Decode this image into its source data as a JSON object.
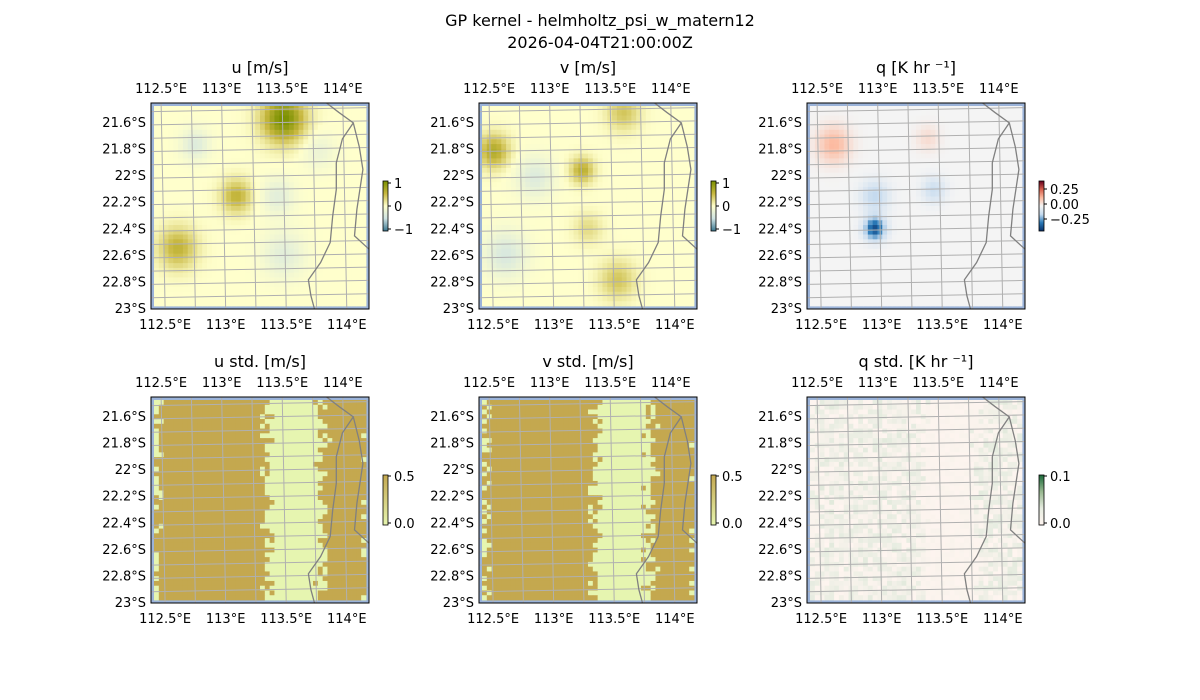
{
  "figure": {
    "title_line1": "GP kernel - helmholtz_psi_w_matern12",
    "title_line2": "2026-04-04T21:00:00Z"
  },
  "chart_data": [
    {
      "type": "heatmap",
      "id": "u",
      "title": "u [m/s]",
      "x_ticks": [
        "112.5°E",
        "113°E",
        "113.5°E",
        "114°E"
      ],
      "y_ticks": [
        "21.6°S",
        "21.8°S",
        "22°S",
        "22.2°S",
        "22.4°S",
        "22.6°S",
        "22.8°S",
        "23°S"
      ],
      "xlim": [
        112.4,
        114.2
      ],
      "ylim": [
        -23.0,
        -21.45
      ],
      "colorbar": {
        "ticks": [
          "1",
          "0",
          "−1"
        ],
        "range": [
          -1,
          1
        ]
      },
      "colormap": [
        "#3a7790",
        "#cfe3e3",
        "#ffffcc",
        "#c8b840",
        "#7a9000"
      ],
      "blobs": [
        {
          "lon": 113.5,
          "lat": -21.55,
          "value": 1.0,
          "radius": 0.18
        },
        {
          "lon": 113.1,
          "lat": -22.15,
          "value": 0.55,
          "radius": 0.13
        },
        {
          "lon": 112.6,
          "lat": -22.55,
          "value": 0.55,
          "radius": 0.16
        },
        {
          "lon": 112.75,
          "lat": -21.75,
          "value": -0.35,
          "radius": 0.12
        },
        {
          "lon": 113.45,
          "lat": -22.15,
          "value": -0.3,
          "radius": 0.14
        },
        {
          "lon": 113.5,
          "lat": -22.6,
          "value": -0.3,
          "radius": 0.18
        },
        {
          "lon": 113.8,
          "lat": -21.8,
          "value": -0.2,
          "radius": 0.14
        }
      ]
    },
    {
      "type": "heatmap",
      "id": "v",
      "title": "v [m/s]",
      "x_ticks": [
        "112.5°E",
        "113°E",
        "113.5°E",
        "114°E"
      ],
      "y_ticks": [
        "21.6°S",
        "21.8°S",
        "22°S",
        "22.2°S",
        "22.4°S",
        "22.6°S",
        "22.8°S",
        "23°S"
      ],
      "xlim": [
        112.4,
        114.2
      ],
      "ylim": [
        -23.0,
        -21.45
      ],
      "colorbar": {
        "ticks": [
          "1",
          "0",
          "−1"
        ],
        "range": [
          -1,
          1
        ]
      },
      "colormap": [
        "#3a7790",
        "#cfe3e3",
        "#ffffcc",
        "#c8b840",
        "#7a9000"
      ],
      "blobs": [
        {
          "lon": 112.5,
          "lat": -21.8,
          "value": 0.65,
          "radius": 0.13
        },
        {
          "lon": 113.25,
          "lat": -21.95,
          "value": 0.6,
          "radius": 0.1
        },
        {
          "lon": 113.6,
          "lat": -21.5,
          "value": 0.4,
          "radius": 0.14
        },
        {
          "lon": 113.55,
          "lat": -22.8,
          "value": 0.4,
          "radius": 0.15
        },
        {
          "lon": 112.85,
          "lat": -22.0,
          "value": -0.35,
          "radius": 0.16
        },
        {
          "lon": 112.6,
          "lat": -22.6,
          "value": -0.4,
          "radius": 0.18
        },
        {
          "lon": 113.3,
          "lat": -22.4,
          "value": 0.25,
          "radius": 0.12
        }
      ]
    },
    {
      "type": "heatmap",
      "id": "q",
      "title": "q [K hr ⁻¹]",
      "x_ticks": [
        "112.5°E",
        "113°E",
        "113.5°E",
        "114°E"
      ],
      "y_ticks": [
        "21.6°S",
        "21.8°S",
        "22°S",
        "22.2°S",
        "22.4°S",
        "22.6°S",
        "22.8°S",
        "23°S"
      ],
      "xlim": [
        112.4,
        114.2
      ],
      "ylim": [
        -23.0,
        -21.45
      ],
      "colorbar": {
        "ticks": [
          "0.25",
          "0.00",
          "−0.25"
        ],
        "range": [
          -0.35,
          0.35
        ]
      },
      "colormap": [
        "#08306b",
        "#2a7ab8",
        "#c6dbef",
        "#f4f4f4",
        "#fcbba1",
        "#d6604d",
        "#67001f"
      ],
      "blobs": [
        {
          "lon": 112.95,
          "lat": -22.4,
          "value": -0.3,
          "radius": 0.09
        },
        {
          "lon": 112.95,
          "lat": -22.15,
          "value": -0.12,
          "radius": 0.12
        },
        {
          "lon": 113.45,
          "lat": -22.1,
          "value": -0.1,
          "radius": 0.1
        },
        {
          "lon": 112.6,
          "lat": -21.75,
          "value": 0.12,
          "radius": 0.14
        },
        {
          "lon": 113.4,
          "lat": -21.7,
          "value": 0.05,
          "radius": 0.1
        }
      ]
    },
    {
      "type": "heatmap",
      "id": "u_std",
      "title": "u std. [m/s]",
      "x_ticks": [
        "112.5°E",
        "113°E",
        "113.5°E",
        "114°E"
      ],
      "y_ticks": [
        "21.6°S",
        "21.8°S",
        "22°S",
        "22.2°S",
        "22.4°S",
        "22.6°S",
        "22.8°S",
        "23°S"
      ],
      "xlim": [
        112.4,
        114.2
      ],
      "ylim": [
        -23.0,
        -21.45
      ],
      "colorbar": {
        "ticks": [
          "0.5",
          "0.0"
        ],
        "range": [
          0,
          0.5
        ]
      },
      "colormap": [
        "#e6f5b0",
        "#c4a84f"
      ],
      "bands": [
        [
          0.0,
          0.52
        ],
        [
          0.78,
          1.0
        ]
      ]
    },
    {
      "type": "heatmap",
      "id": "v_std",
      "title": "v std. [m/s]",
      "x_ticks": [
        "112.5°E",
        "113°E",
        "113.5°E",
        "114°E"
      ],
      "y_ticks": [
        "21.6°S",
        "21.8°S",
        "22°S",
        "22.2°S",
        "22.4°S",
        "22.6°S",
        "22.8°S",
        "23°S"
      ],
      "xlim": [
        112.4,
        114.2
      ],
      "ylim": [
        -23.0,
        -21.45
      ],
      "colorbar": {
        "ticks": [
          "0.5",
          "0.0"
        ],
        "range": [
          0,
          0.5
        ]
      },
      "colormap": [
        "#e6f5b0",
        "#c4a84f"
      ],
      "bands": [
        [
          0.0,
          0.52
        ],
        [
          0.78,
          1.0
        ]
      ]
    },
    {
      "type": "heatmap",
      "id": "q_std",
      "title": "q std. [K hr ⁻¹]",
      "x_ticks": [
        "112.5°E",
        "113°E",
        "113.5°E",
        "114°E"
      ],
      "y_ticks": [
        "21.6°S",
        "21.8°S",
        "22°S",
        "22.2°S",
        "22.4°S",
        "22.6°S",
        "22.8°S",
        "23°S"
      ],
      "xlim": [
        112.4,
        114.2
      ],
      "ylim": [
        -23.0,
        -21.45
      ],
      "colorbar": {
        "ticks": [
          "0.1",
          "0.0"
        ],
        "range": [
          0,
          0.1
        ]
      },
      "colormap": [
        "#fff5f0",
        "#e6ece0",
        "#98b890",
        "#1a6a3a"
      ],
      "bands": [
        [
          0.0,
          0.52
        ],
        [
          0.78,
          1.0
        ]
      ]
    }
  ],
  "map": {
    "ocean_color": "#9bb3d9",
    "grid_color": "#b0b0b0",
    "coast_color": "#808080"
  }
}
